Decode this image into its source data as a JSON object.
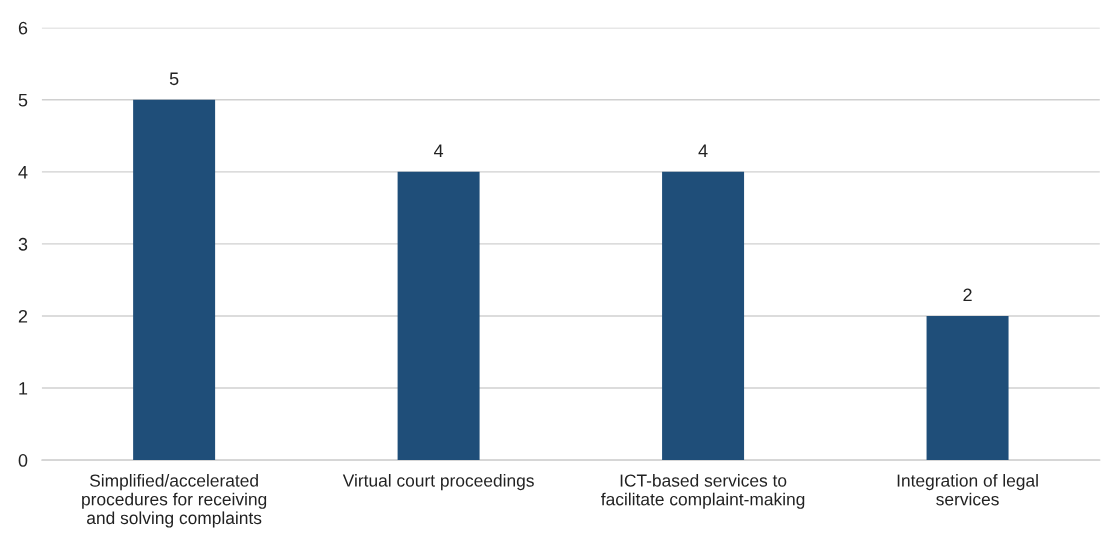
{
  "chart_data": {
    "type": "bar",
    "categories": [
      "Simplified/accelerated procedures for receiving and solving complaints",
      "Virtual court proceedings",
      "ICT-based services to facilitate complaint-making",
      "Integration of legal services"
    ],
    "values": [
      5,
      4,
      4,
      2
    ],
    "color": "#1f4e79",
    "ylim": [
      0,
      6
    ],
    "yticks": [
      0,
      1,
      2,
      3,
      4,
      5,
      6
    ],
    "grid": "y",
    "legend": false,
    "data_labels": true
  }
}
